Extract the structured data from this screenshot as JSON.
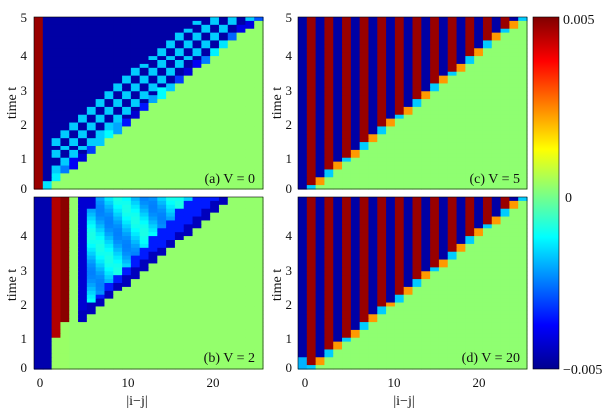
{
  "chart_data": [
    {
      "type": "heatmap",
      "panel_label": "(a) V = 0",
      "interaction_V": 0,
      "xlabel": "",
      "ylabel": "time t",
      "xlim": [
        0,
        25
      ],
      "ylim": [
        0,
        5
      ],
      "x_ticks": [],
      "y_ticks": [
        "0",
        "1",
        "2",
        "3",
        "4",
        "5"
      ],
      "pattern": "light cone; dark-blue region inside cone with checkerboard cyan spots near front; dark-red column at |i-j|=0; green (~0) outside cone",
      "front_speed": 4.9
    },
    {
      "type": "heatmap",
      "panel_label": "(c) V = 5",
      "interaction_V": 5,
      "xlabel": "",
      "ylabel": "time t",
      "xlim": [
        0,
        25
      ],
      "ylim": [
        0,
        5
      ],
      "x_ticks": [],
      "y_ticks": [
        "0",
        "1",
        "2",
        "3",
        "4",
        "5"
      ],
      "pattern": "alternating red/blue stripes in |i-j| inside a linear front, green beyond front",
      "front_speed": 4.8
    },
    {
      "type": "heatmap",
      "panel_label": "(b) V = 2",
      "interaction_V": 2,
      "xlabel": "|i−j|",
      "ylabel": "time t",
      "xlim": [
        0,
        25
      ],
      "ylim": [
        0,
        5
      ],
      "x_ticks": [
        "0",
        "10",
        "20"
      ],
      "y_ticks": [
        "0",
        "1",
        "2",
        "3",
        "4"
      ],
      "pattern": "red stripe near |i-j|=3-4; light-blue wedge with dark-blue edges opening from |i-j|~4; green elsewhere",
      "front_speed": 4.9
    },
    {
      "type": "heatmap",
      "panel_label": "(d) V = 20",
      "interaction_V": 20,
      "xlabel": "|i−j|",
      "ylabel": "time t",
      "xlim": [
        0,
        25
      ],
      "ylim": [
        0,
        5
      ],
      "x_ticks": [
        "0",
        "10",
        "20"
      ],
      "y_ticks": [
        "0",
        "1",
        "2",
        "3",
        "4"
      ],
      "pattern": "alternating red/blue stripes inside linear front, green beyond",
      "front_speed": 5.0
    }
  ],
  "colorbar": {
    "min_label": "−0.005",
    "mid_label": "0",
    "max_label": "0.005",
    "range": [
      -0.005,
      0.005
    ],
    "colormap": "jet"
  }
}
